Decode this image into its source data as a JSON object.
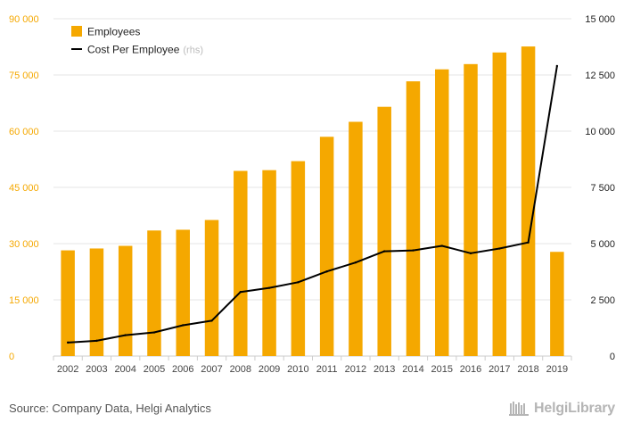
{
  "chart_data": {
    "type": "bar",
    "categories": [
      "2002",
      "2003",
      "2004",
      "2005",
      "2006",
      "2007",
      "2008",
      "2009",
      "2010",
      "2011",
      "2012",
      "2013",
      "2014",
      "2015",
      "2016",
      "2017",
      "2018",
      "2019"
    ],
    "series": [
      {
        "name": "Employees",
        "type": "bar",
        "axis": "left",
        "color": "#f5a800",
        "values": [
          28200,
          28700,
          29400,
          33500,
          33700,
          36300,
          49400,
          49600,
          52000,
          58500,
          62500,
          66500,
          73300,
          76500,
          77900,
          81000,
          82600,
          27800
        ]
      },
      {
        "name": "Cost Per Employee",
        "legend_suffix": "(rhs)",
        "type": "line",
        "axis": "right",
        "color": "#000000",
        "values": [
          600,
          680,
          930,
          1050,
          1370,
          1570,
          2850,
          3030,
          3280,
          3760,
          4160,
          4660,
          4700,
          4900,
          4570,
          4780,
          5050,
          12900
        ]
      }
    ],
    "left_axis": {
      "min": 0,
      "max": 90000,
      "ticks": [
        0,
        15000,
        30000,
        45000,
        60000,
        75000,
        90000
      ],
      "tick_labels": [
        "0",
        "15 000",
        "30 000",
        "45 000",
        "60 000",
        "75 000",
        "90 000"
      ],
      "color": "#f5a800"
    },
    "right_axis": {
      "min": 0,
      "max": 15000,
      "ticks": [
        0,
        2500,
        5000,
        7500,
        10000,
        12500,
        15000
      ],
      "tick_labels": [
        "0",
        "2 500",
        "5 000",
        "7 500",
        "10 000",
        "12 500",
        "15 000"
      ],
      "color": "#222222"
    },
    "legend_position": "top-left",
    "grid": true
  },
  "footer": {
    "source": "Source: Company Data, Helgi Analytics",
    "logo_text": "HelgiLibrary",
    "logo_icon": "bookshelf-icon"
  }
}
